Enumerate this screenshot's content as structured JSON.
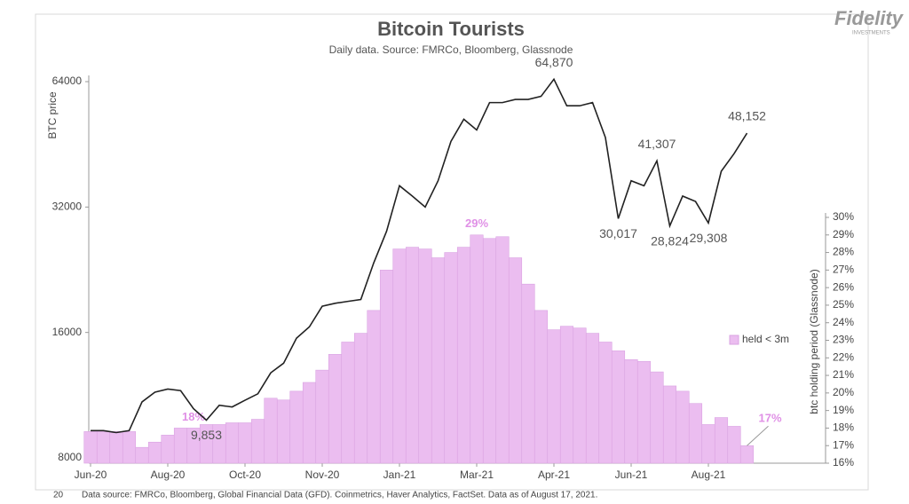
{
  "chart_data": {
    "type": "combo",
    "title": "Bitcoin Tourists",
    "subtitle": "Daily data.  Source: FMRCo, Bloomberg, Glassnode",
    "source": "Data source: FMRCo, Bloomberg, Global Financial Data (GFD). Coinmetrics, Haver Analytics, FactSet.  Data as of August 17, 2021.",
    "page_number": "20",
    "brand": "Fidelity",
    "brand_sub": "INVESTMENTS",
    "ylabel": "BTC price",
    "y2label": "btc holding period (Glassnode)",
    "ylog": true,
    "ylim": [
      8000,
      64000
    ],
    "yticks": [
      8000,
      16000,
      32000,
      64000
    ],
    "y2lim": [
      16,
      30
    ],
    "y2ticks": [
      {
        "value": 16,
        "label": "16%"
      },
      {
        "value": 17,
        "label": "17%"
      },
      {
        "value": 18,
        "label": "18%"
      },
      {
        "value": 19,
        "label": "19%"
      },
      {
        "value": 20,
        "label": "20%"
      },
      {
        "value": 21,
        "label": "21%"
      },
      {
        "value": 22,
        "label": "22%"
      },
      {
        "value": 23,
        "label": "23%"
      },
      {
        "value": 24,
        "label": "24%"
      },
      {
        "value": 25,
        "label": "25%"
      },
      {
        "value": 26,
        "label": "26%"
      },
      {
        "value": 27,
        "label": "27%"
      },
      {
        "value": 28,
        "label": "28%"
      },
      {
        "value": 29,
        "label": "29%"
      },
      {
        "value": 30,
        "label": "30%"
      }
    ],
    "legend": "right",
    "categories": [
      "Jun-20",
      null,
      null,
      null,
      null,
      null,
      "Aug-20",
      null,
      null,
      null,
      null,
      null,
      "Oct-20",
      null,
      null,
      null,
      null,
      null,
      "Nov-20",
      null,
      null,
      null,
      null,
      null,
      "Jan-21",
      null,
      null,
      null,
      null,
      null,
      "Mar-21",
      null,
      null,
      null,
      null,
      null,
      "Apr-21",
      null,
      null,
      null,
      null,
      null,
      "Jun-21",
      null,
      null,
      null,
      null,
      null,
      "Aug-21",
      null,
      null,
      null
    ],
    "series": [
      {
        "type": "line",
        "color": "#222222",
        "axis": "y",
        "values": [
          9300,
          9300,
          9200,
          9300,
          10900,
          11500,
          11700,
          11600,
          10500,
          9853,
          10700,
          10600,
          11000,
          11400,
          12800,
          13500,
          15500,
          16500,
          18500,
          18800,
          19000,
          19200,
          23500,
          28000,
          36000,
          34000,
          32000,
          37000,
          46000,
          52000,
          49000,
          57000,
          57000,
          58000,
          58000,
          59000,
          64870,
          56000,
          56000,
          57000,
          47000,
          30017,
          37000,
          36000,
          41307,
          28824,
          34000,
          33000,
          29308,
          39000,
          43000,
          48152
        ],
        "value_labels": [
          null,
          null,
          null,
          null,
          null,
          null,
          null,
          null,
          null,
          "9,853",
          null,
          null,
          null,
          null,
          null,
          null,
          null,
          null,
          null,
          null,
          null,
          null,
          null,
          null,
          null,
          null,
          null,
          null,
          null,
          null,
          null,
          null,
          null,
          null,
          null,
          null,
          "64,870",
          null,
          null,
          null,
          null,
          "30,017",
          null,
          null,
          "41,307",
          "28,824",
          null,
          null,
          "29,308",
          null,
          null,
          "48,152"
        ]
      },
      {
        "type": "bar",
        "name": "held < 3m",
        "color": "#ebbdf0",
        "axis": "y2",
        "values": [
          17.8,
          17.8,
          17.8,
          17.8,
          16.9,
          17.2,
          17.6,
          18,
          18,
          18.2,
          18.2,
          18.3,
          18.3,
          18.5,
          19.7,
          19.6,
          20.1,
          20.6,
          21.3,
          22.2,
          22.9,
          23.4,
          24.7,
          27,
          28.2,
          28.3,
          28.2,
          27.7,
          28,
          28.3,
          29,
          28.8,
          28.9,
          27.7,
          26.2,
          24.7,
          23.6,
          23.8,
          23.7,
          23.4,
          22.9,
          22.4,
          21.9,
          21.8,
          21.2,
          20.4,
          20.1,
          19.4,
          18.2,
          18.6,
          18.1,
          17
        ],
        "value_labels": [
          null,
          null,
          null,
          null,
          null,
          null,
          null,
          null,
          "18%",
          null,
          null,
          null,
          null,
          null,
          null,
          null,
          null,
          null,
          null,
          null,
          null,
          null,
          null,
          null,
          null,
          null,
          null,
          null,
          null,
          null,
          "29%",
          null,
          null,
          null,
          null,
          null,
          null,
          null,
          null,
          null,
          null,
          null,
          null,
          null,
          null,
          null,
          null,
          null,
          null,
          null,
          null,
          "17%"
        ]
      }
    ]
  }
}
